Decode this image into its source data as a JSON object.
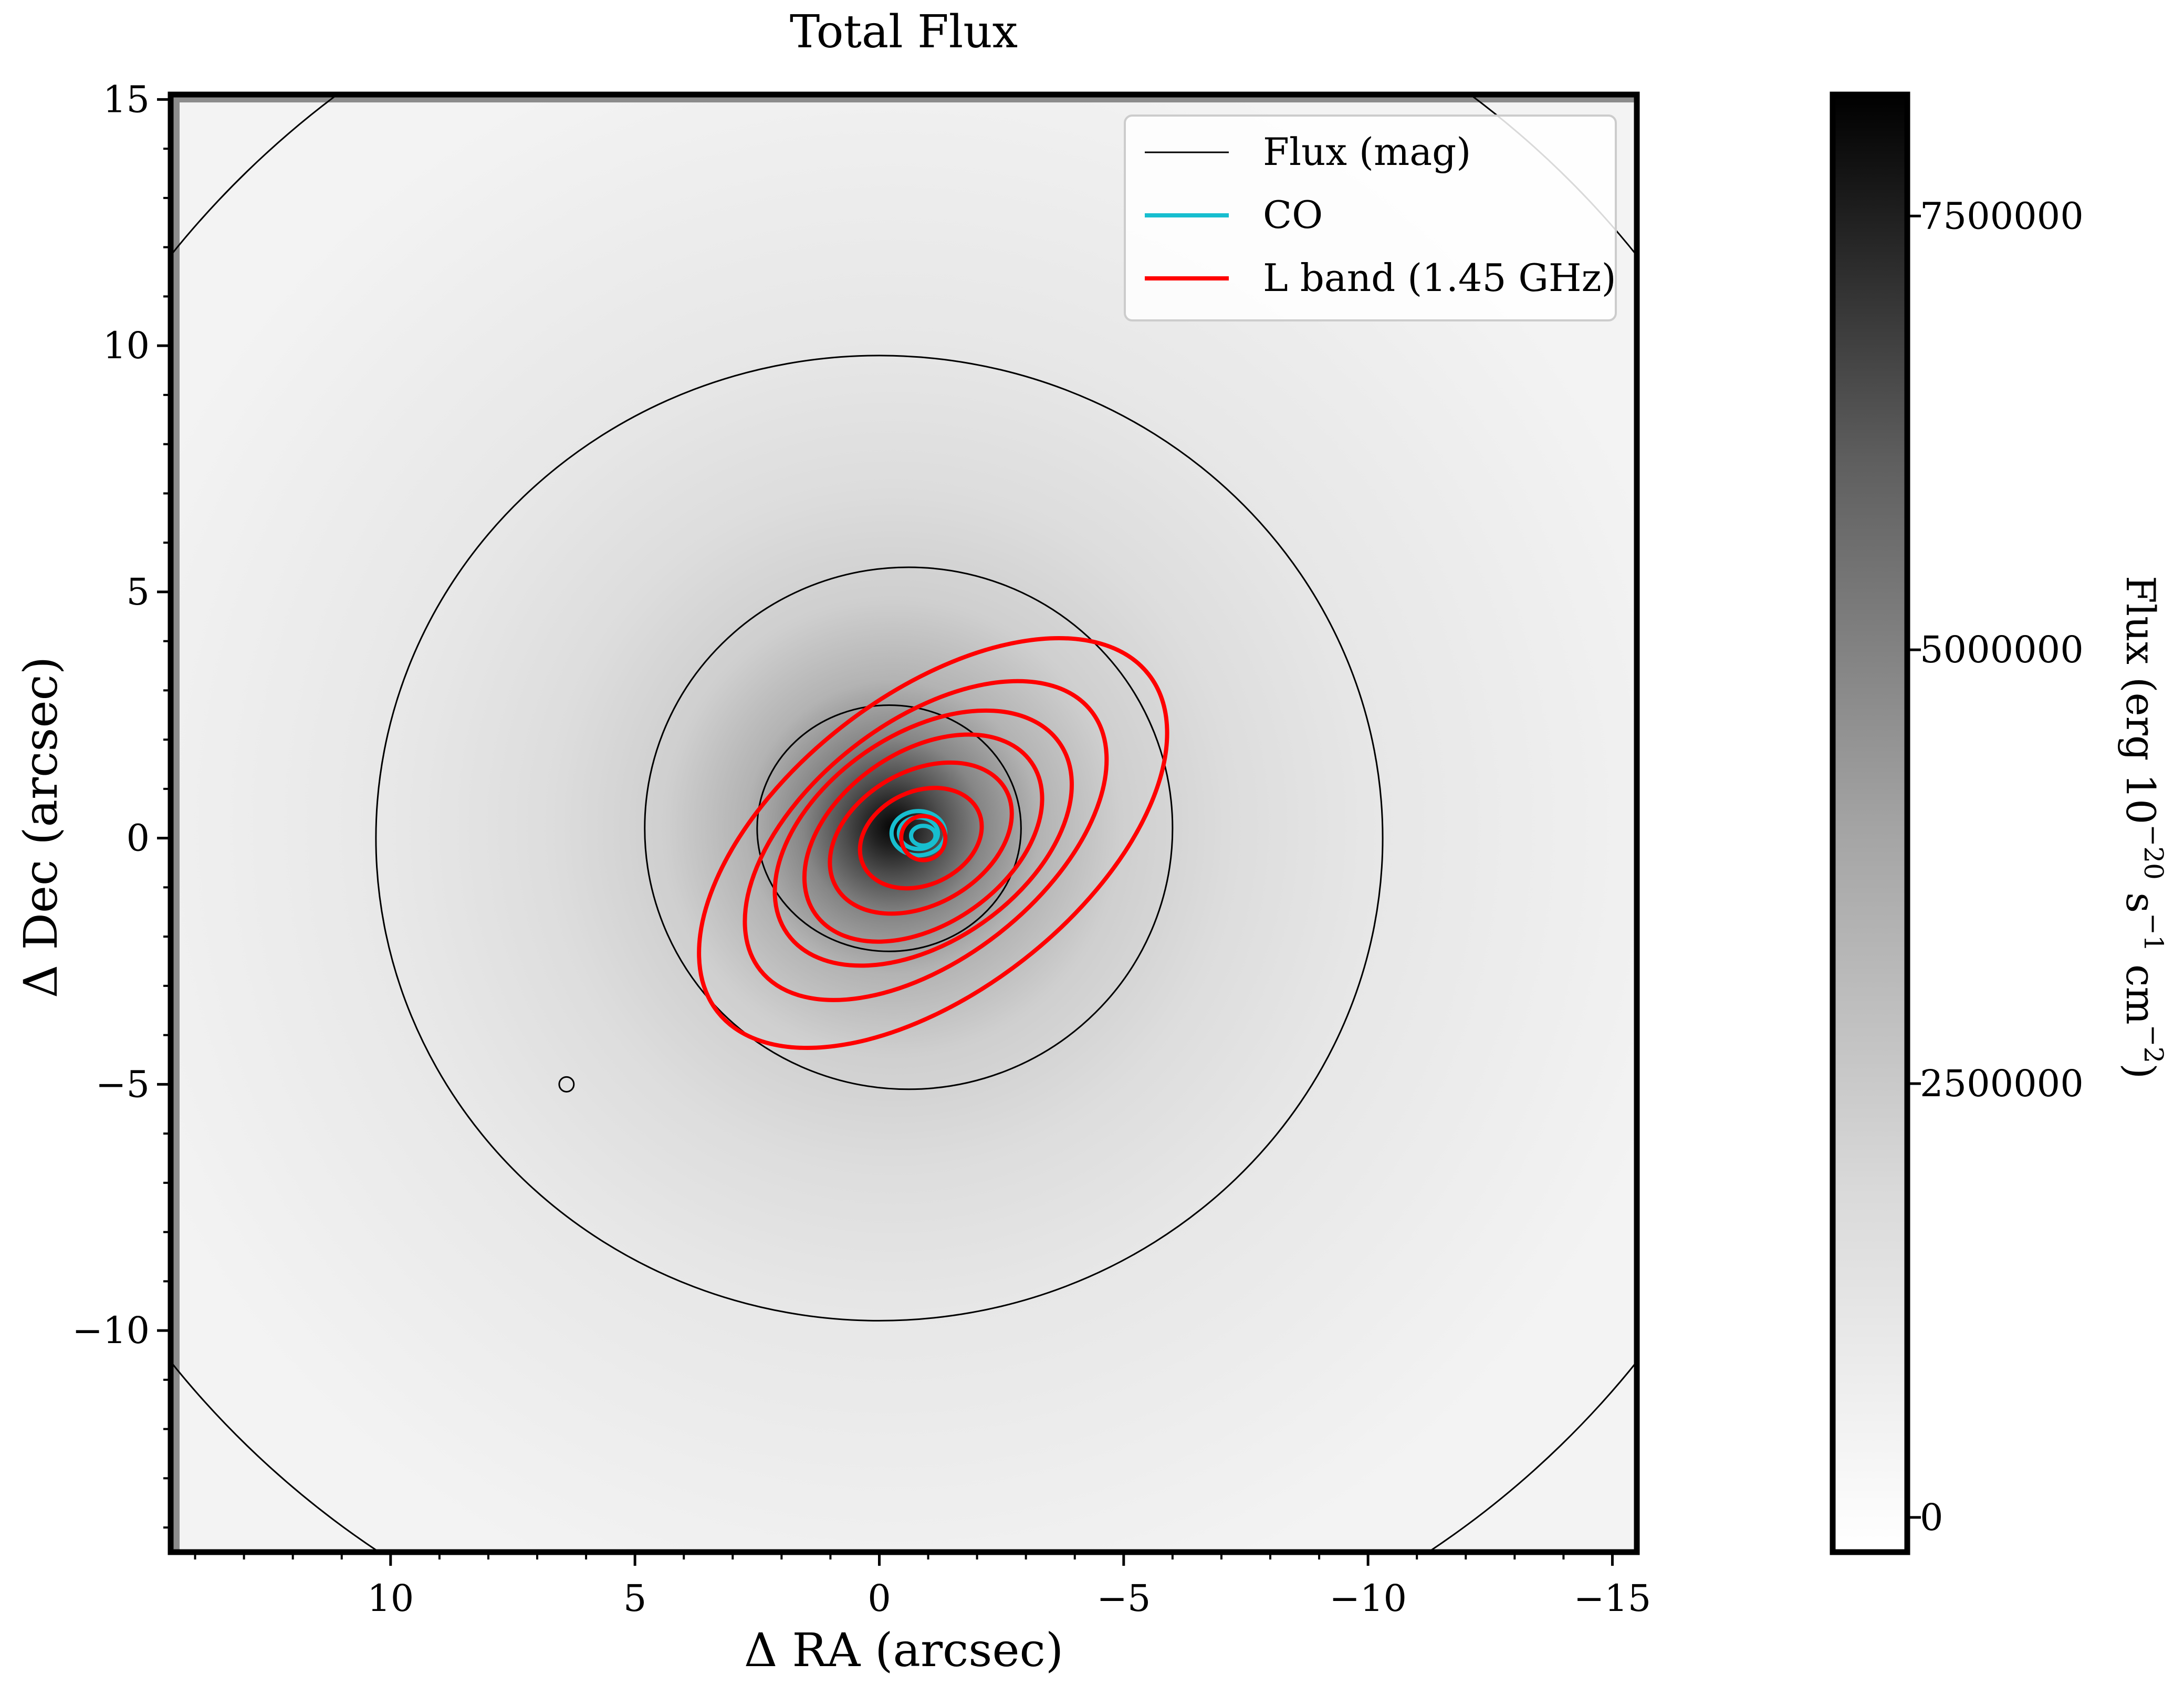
{
  "chart_data": {
    "type": "heatmap",
    "title": "Total Flux",
    "xlabel": "Δ RA (arcsec)",
    "ylabel": "Δ Dec (arcsec)",
    "xlim": [
      14.5,
      -15.5
    ],
    "ylim": [
      -14.5,
      15.1
    ],
    "x_ticks": [
      10,
      5,
      0,
      -5,
      -10,
      -15
    ],
    "y_ticks": [
      15,
      10,
      5,
      0,
      -5,
      -10
    ],
    "x_tick_labels": [
      "10",
      "5",
      "0",
      "−5",
      "−10",
      "−15"
    ],
    "y_tick_labels": [
      "15",
      "10",
      "5",
      "0",
      "−5",
      "−10"
    ],
    "image": {
      "center": [
        -0.6,
        0.3
      ],
      "peak_flux": 8200000,
      "background_flux": 150000,
      "cmap": "Greys",
      "note_strip_colors": {
        "left": "#8c8c8c",
        "top": "#8c8c8c"
      }
    },
    "colorbar": {
      "label_parts": [
        "Flux (erg 10",
        "−20",
        " s",
        "−1",
        " cm",
        "−2",
        ")"
      ],
      "vmin": -200000,
      "vmax": 8200000,
      "ticks": [
        0,
        2500000,
        5000000,
        7500000
      ],
      "tick_labels": [
        "0",
        "2500000",
        "5000000",
        "7500000"
      ]
    },
    "legend": {
      "position": "upper right",
      "entries": [
        {
          "label": "Flux (mag)",
          "color": "#000000",
          "linewidth": 1
        },
        {
          "label": "CO",
          "color": "#17becf",
          "linewidth": 3
        },
        {
          "label": "L band (1.45 GHz)",
          "color": "#ff0000",
          "linewidth": 3
        }
      ]
    },
    "series": [
      {
        "name": "Flux (mag)",
        "color": "#000000",
        "contours": [
          {
            "cx": -0.2,
            "cy": 0.2,
            "rx": 2.7,
            "ry": 2.5
          },
          {
            "cx": -0.6,
            "cy": 0.2,
            "rx": 5.4,
            "ry": 5.3
          },
          {
            "cx": 0.0,
            "cy": 0.0,
            "rx": 10.3,
            "ry": 9.8
          },
          {
            "cx": -0.5,
            "cy": 0.6,
            "rx": 19.0,
            "ry": 18.3
          },
          {
            "cx": 6.4,
            "cy": -5.0,
            "rx": 0.15,
            "ry": 0.15
          }
        ]
      },
      {
        "name": "CO",
        "color": "#17becf",
        "contours": [
          {
            "cx": -0.8,
            "cy": 0.1,
            "rx": 0.55,
            "ry": 0.45
          },
          {
            "cx": -0.8,
            "cy": 0.1,
            "rx": 0.4,
            "ry": 0.32
          },
          {
            "cx": -0.9,
            "cy": 0.05,
            "rx": 0.25,
            "ry": 0.2
          }
        ]
      },
      {
        "name": "L band (1.45 GHz)",
        "color": "#ff0000",
        "contours": [
          {
            "cx": -1.1,
            "cy": -0.1,
            "rx": 5.6,
            "ry": 3.0,
            "angle": 38
          },
          {
            "cx": -0.95,
            "cy": -0.05,
            "rx": 4.3,
            "ry": 2.4,
            "angle": 38
          },
          {
            "cx": -0.9,
            "cy": 0.0,
            "rx": 3.4,
            "ry": 2.1,
            "angle": 35
          },
          {
            "cx": -0.9,
            "cy": 0.0,
            "rx": 2.7,
            "ry": 1.75,
            "angle": 35
          },
          {
            "cx": -0.85,
            "cy": 0.0,
            "rx": 2.0,
            "ry": 1.35,
            "angle": 30
          },
          {
            "cx": -0.85,
            "cy": 0.0,
            "rx": 1.3,
            "ry": 0.95,
            "angle": 25
          },
          {
            "cx": -0.9,
            "cy": 0.0,
            "rx": 0.45,
            "ry": 0.45,
            "angle": 45
          }
        ]
      }
    ]
  }
}
